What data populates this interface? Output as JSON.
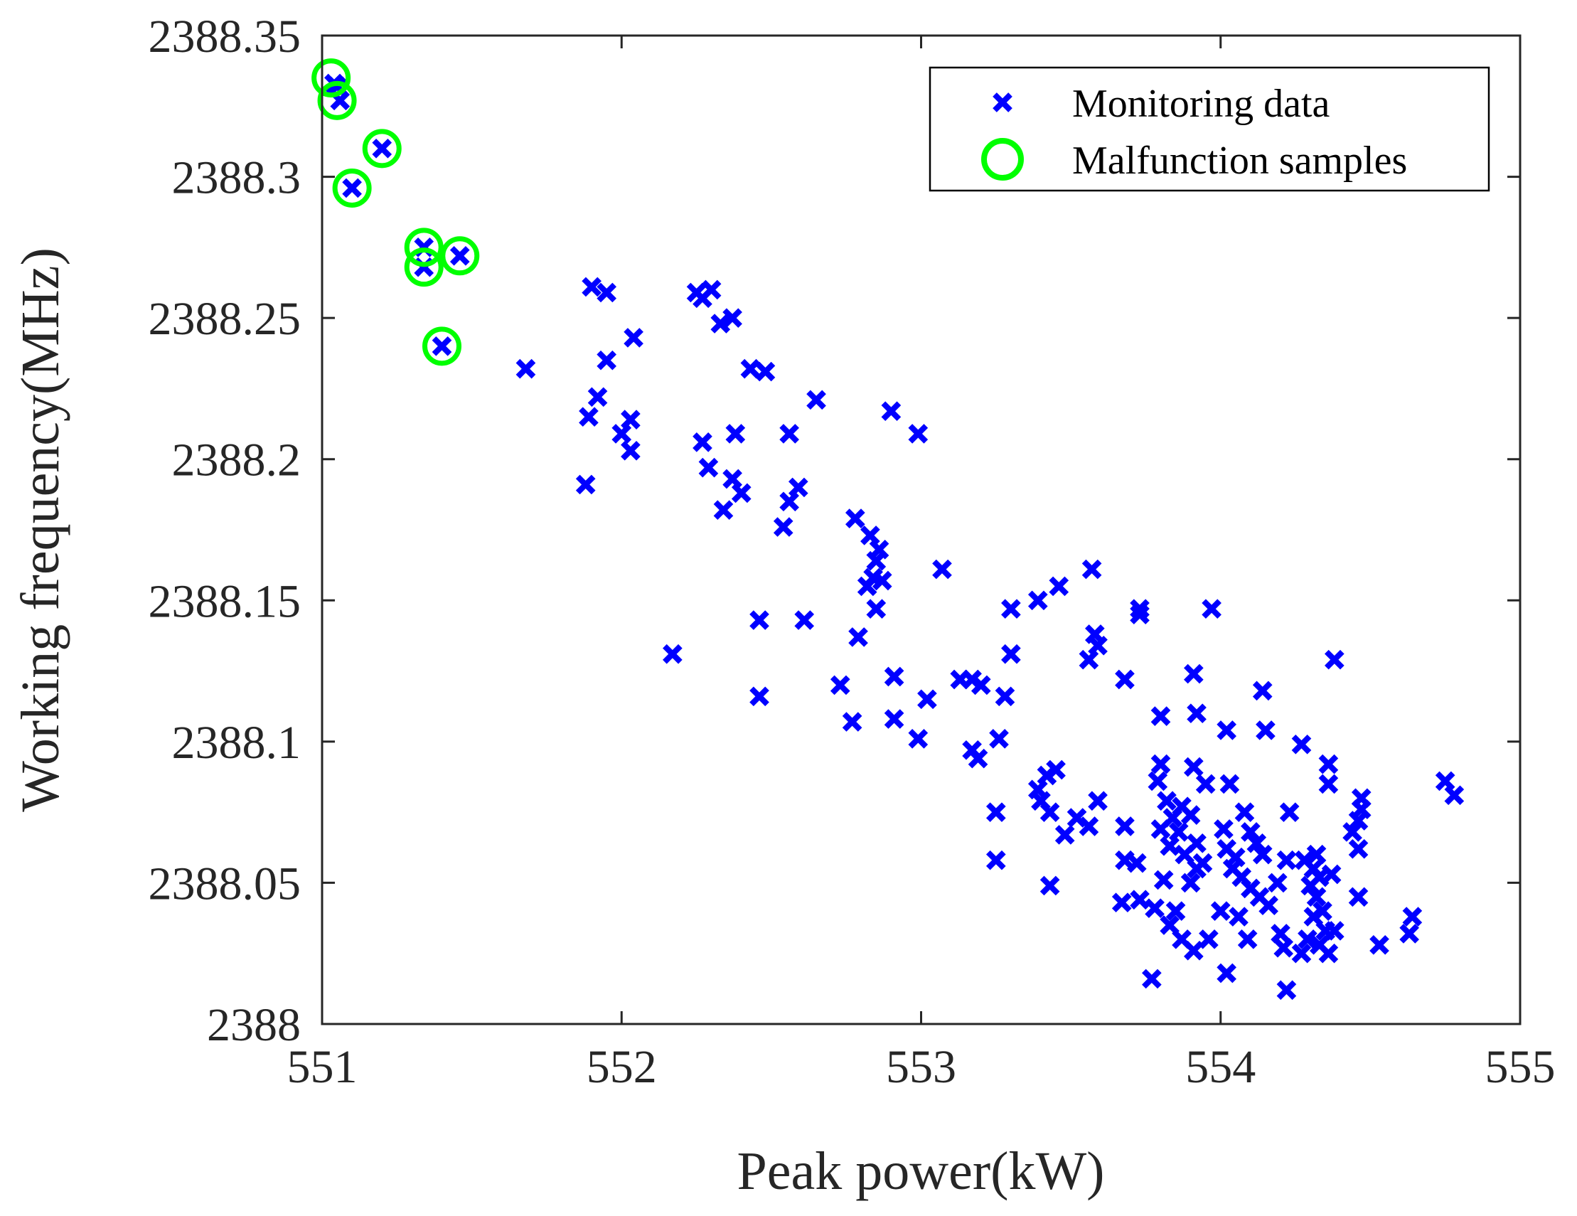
{
  "chart_data": {
    "type": "scatter",
    "title": "",
    "xlabel": "Peak power(kW)",
    "ylabel": "Working frequency(MHz)",
    "xlim": [
      551,
      555
    ],
    "ylim": [
      2388,
      2388.35
    ],
    "x_ticks": [
      551,
      552,
      553,
      554,
      555
    ],
    "x_tick_labels": [
      "551",
      "552",
      "553",
      "554",
      "555"
    ],
    "y_ticks": [
      2388,
      2388.05,
      2388.1,
      2388.15,
      2388.2,
      2388.25,
      2388.3,
      2388.35
    ],
    "y_tick_labels": [
      "2388",
      "2388.05",
      "2388.1",
      "2388.15",
      "2388.2",
      "2388.25",
      "2388.3",
      "2388.35"
    ],
    "grid": false,
    "legend_position": "top-right",
    "legend": [
      {
        "label": "Monitoring data",
        "marker": "x",
        "color": "#0000ff"
      },
      {
        "label": "Malfunction samples",
        "marker": "circle",
        "color": "#00ff00"
      }
    ],
    "series": [
      {
        "name": "Monitoring data",
        "marker": "x",
        "color": "#0000ff",
        "points": [
          [
            551.04,
            2388.333
          ],
          [
            551.05,
            2388.332
          ],
          [
            551.06,
            2388.327
          ],
          [
            551.2,
            2388.31
          ],
          [
            551.1,
            2388.296
          ],
          [
            551.34,
            2388.275
          ],
          [
            551.34,
            2388.268
          ],
          [
            551.46,
            2388.272
          ],
          [
            551.4,
            2388.24
          ],
          [
            551.68,
            2388.232
          ],
          [
            551.9,
            2388.261
          ],
          [
            551.95,
            2388.259
          ],
          [
            552.04,
            2388.243
          ],
          [
            551.95,
            2388.235
          ],
          [
            551.92,
            2388.222
          ],
          [
            551.89,
            2388.215
          ],
          [
            552.03,
            2388.214
          ],
          [
            552.0,
            2388.209
          ],
          [
            552.03,
            2388.203
          ],
          [
            551.88,
            2388.191
          ],
          [
            552.25,
            2388.259
          ],
          [
            552.3,
            2388.26
          ],
          [
            552.27,
            2388.257
          ],
          [
            552.33,
            2388.248
          ],
          [
            552.37,
            2388.25
          ],
          [
            552.43,
            2388.232
          ],
          [
            552.48,
            2388.231
          ],
          [
            552.65,
            2388.221
          ],
          [
            552.38,
            2388.209
          ],
          [
            552.27,
            2388.206
          ],
          [
            552.29,
            2388.197
          ],
          [
            552.37,
            2388.193
          ],
          [
            552.4,
            2388.188
          ],
          [
            552.34,
            2388.182
          ],
          [
            552.56,
            2388.209
          ],
          [
            552.59,
            2388.19
          ],
          [
            552.56,
            2388.185
          ],
          [
            552.54,
            2388.176
          ],
          [
            552.46,
            2388.143
          ],
          [
            552.61,
            2388.143
          ],
          [
            552.46,
            2388.116
          ],
          [
            552.17,
            2388.131
          ],
          [
            552.9,
            2388.217
          ],
          [
            552.99,
            2388.209
          ],
          [
            552.78,
            2388.179
          ],
          [
            552.83,
            2388.173
          ],
          [
            552.86,
            2388.168
          ],
          [
            552.85,
            2388.164
          ],
          [
            552.84,
            2388.158
          ],
          [
            552.87,
            2388.157
          ],
          [
            552.82,
            2388.155
          ],
          [
            552.85,
            2388.147
          ],
          [
            552.79,
            2388.137
          ],
          [
            552.91,
            2388.123
          ],
          [
            553.02,
            2388.115
          ],
          [
            552.73,
            2388.12
          ],
          [
            552.77,
            2388.107
          ],
          [
            552.91,
            2388.108
          ],
          [
            552.99,
            2388.101
          ],
          [
            553.07,
            2388.161
          ],
          [
            553.13,
            2388.122
          ],
          [
            553.17,
            2388.122
          ],
          [
            553.2,
            2388.12
          ],
          [
            553.28,
            2388.116
          ],
          [
            553.17,
            2388.097
          ],
          [
            553.19,
            2388.094
          ],
          [
            553.26,
            2388.101
          ],
          [
            553.3,
            2388.147
          ],
          [
            553.3,
            2388.131
          ],
          [
            553.25,
            2388.075
          ],
          [
            553.25,
            2388.058
          ],
          [
            553.39,
            2388.15
          ],
          [
            553.46,
            2388.155
          ],
          [
            553.57,
            2388.161
          ],
          [
            553.58,
            2388.138
          ],
          [
            553.59,
            2388.134
          ],
          [
            553.56,
            2388.129
          ],
          [
            553.68,
            2388.122
          ],
          [
            553.73,
            2388.147
          ],
          [
            553.73,
            2388.145
          ],
          [
            553.97,
            2388.147
          ],
          [
            553.91,
            2388.124
          ],
          [
            554.38,
            2388.129
          ],
          [
            554.14,
            2388.118
          ],
          [
            553.8,
            2388.109
          ],
          [
            553.92,
            2388.11
          ],
          [
            554.02,
            2388.104
          ],
          [
            554.15,
            2388.104
          ],
          [
            554.27,
            2388.099
          ],
          [
            554.36,
            2388.092
          ],
          [
            553.42,
            2388.088
          ],
          [
            553.45,
            2388.09
          ],
          [
            553.39,
            2388.083
          ],
          [
            553.4,
            2388.079
          ],
          [
            553.43,
            2388.075
          ],
          [
            553.52,
            2388.073
          ],
          [
            553.56,
            2388.07
          ],
          [
            553.59,
            2388.079
          ],
          [
            553.48,
            2388.067
          ],
          [
            553.43,
            2388.049
          ],
          [
            553.68,
            2388.07
          ],
          [
            553.68,
            2388.058
          ],
          [
            553.72,
            2388.057
          ],
          [
            553.67,
            2388.043
          ],
          [
            553.73,
            2388.044
          ],
          [
            553.78,
            2388.041
          ],
          [
            553.81,
            2388.051
          ],
          [
            553.8,
            2388.092
          ],
          [
            553.79,
            2388.086
          ],
          [
            553.82,
            2388.079
          ],
          [
            553.84,
            2388.073
          ],
          [
            553.86,
            2388.068
          ],
          [
            553.83,
            2388.063
          ],
          [
            553.88,
            2388.06
          ],
          [
            553.8,
            2388.069
          ],
          [
            553.87,
            2388.077
          ],
          [
            553.9,
            2388.074
          ],
          [
            553.92,
            2388.064
          ],
          [
            553.91,
            2388.091
          ],
          [
            553.95,
            2388.085
          ],
          [
            553.94,
            2388.057
          ],
          [
            553.92,
            2388.055
          ],
          [
            553.9,
            2388.05
          ],
          [
            553.85,
            2388.04
          ],
          [
            553.83,
            2388.035
          ],
          [
            553.87,
            2388.03
          ],
          [
            553.91,
            2388.026
          ],
          [
            553.96,
            2388.03
          ],
          [
            553.77,
            2388.016
          ],
          [
            554.01,
            2388.069
          ],
          [
            554.02,
            2388.062
          ],
          [
            554.05,
            2388.059
          ],
          [
            554.04,
            2388.055
          ],
          [
            554.07,
            2388.052
          ],
          [
            554.08,
            2388.075
          ],
          [
            554.1,
            2388.068
          ],
          [
            554.03,
            2388.085
          ],
          [
            554.12,
            2388.064
          ],
          [
            554.14,
            2388.06
          ],
          [
            554.1,
            2388.048
          ],
          [
            554.13,
            2388.045
          ],
          [
            554.16,
            2388.042
          ],
          [
            554.0,
            2388.04
          ],
          [
            554.06,
            2388.038
          ],
          [
            554.09,
            2388.03
          ],
          [
            554.02,
            2388.018
          ],
          [
            554.19,
            2388.05
          ],
          [
            554.22,
            2388.058
          ],
          [
            554.2,
            2388.032
          ],
          [
            554.21,
            2388.027
          ],
          [
            554.22,
            2388.012
          ],
          [
            554.23,
            2388.075
          ],
          [
            554.28,
            2388.058
          ],
          [
            554.31,
            2388.055
          ],
          [
            554.33,
            2388.052
          ],
          [
            554.3,
            2388.049
          ],
          [
            554.32,
            2388.045
          ],
          [
            554.34,
            2388.04
          ],
          [
            554.31,
            2388.038
          ],
          [
            554.35,
            2388.033
          ],
          [
            554.29,
            2388.03
          ],
          [
            554.33,
            2388.028
          ],
          [
            554.36,
            2388.025
          ],
          [
            554.27,
            2388.025
          ],
          [
            554.36,
            2388.085
          ],
          [
            554.32,
            2388.06
          ],
          [
            554.37,
            2388.053
          ],
          [
            554.38,
            2388.033
          ],
          [
            554.47,
            2388.08
          ],
          [
            554.47,
            2388.076
          ],
          [
            554.46,
            2388.072
          ],
          [
            554.44,
            2388.068
          ],
          [
            554.46,
            2388.062
          ],
          [
            554.46,
            2388.045
          ],
          [
            554.53,
            2388.028
          ],
          [
            554.64,
            2388.038
          ],
          [
            554.63,
            2388.032
          ],
          [
            554.75,
            2388.086
          ],
          [
            554.78,
            2388.081
          ]
        ]
      },
      {
        "name": "Malfunction samples",
        "marker": "circle",
        "color": "#00ff00",
        "points": [
          [
            551.03,
            2388.335
          ],
          [
            551.05,
            2388.327
          ],
          [
            551.2,
            2388.31
          ],
          [
            551.1,
            2388.296
          ],
          [
            551.34,
            2388.275
          ],
          [
            551.34,
            2388.268
          ],
          [
            551.46,
            2388.272
          ],
          [
            551.4,
            2388.24
          ]
        ]
      }
    ]
  }
}
